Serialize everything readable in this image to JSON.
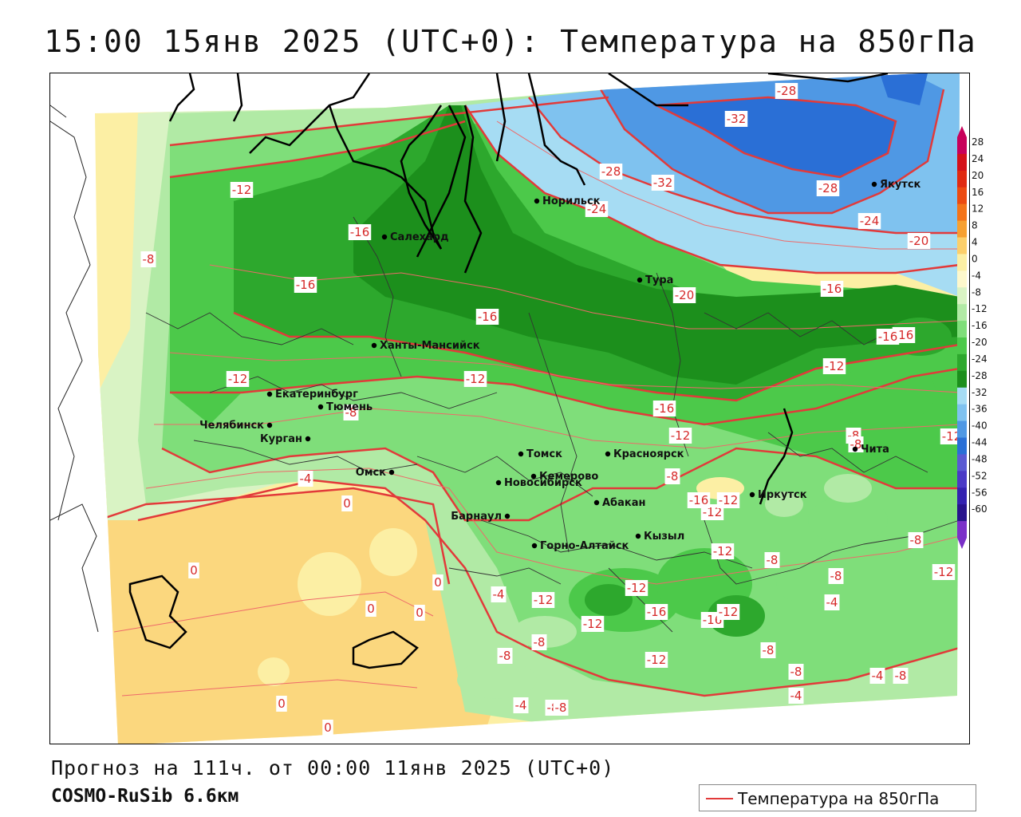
{
  "title": "15:00 15янв 2025 (UTC+0): Температура на 850гПа",
  "footer": {
    "forecast": "Прогноз на 111ч. от 00:00 11янв 2025 (UTC+0)",
    "model": "COSMO-RuSib 6.6км"
  },
  "legend": {
    "label": "Температура на 850гПа",
    "line_color": "#e23a3a"
  },
  "colorbar": {
    "ticks": [
      "28",
      "24",
      "20",
      "16",
      "12",
      "8",
      "4",
      "0",
      "-4",
      "-8",
      "-12",
      "-16",
      "-20",
      "-24",
      "-28",
      "-32",
      "-36",
      "-40",
      "-44",
      "-48",
      "-52",
      "-56",
      "-60"
    ],
    "colors": [
      "#c8005a",
      "#d4101a",
      "#e02a10",
      "#ec4a10",
      "#f37318",
      "#f7a030",
      "#fccf6a",
      "#fcefa4",
      "#fdf8cc",
      "#d9f3c4",
      "#b1eaa5",
      "#7fde7a",
      "#4cc94a",
      "#2da82d",
      "#1c8f1c",
      "#a6dcf3",
      "#7fc2ef",
      "#4f98e4",
      "#2a6fd6",
      "#5a5ad2",
      "#4a3ac6",
      "#3422b0",
      "#28148c",
      "#7a30c8"
    ]
  },
  "cities": [
    {
      "name": "Салехард"
    },
    {
      "name": "Норильск"
    },
    {
      "name": "Якутск"
    },
    {
      "name": "Тура"
    },
    {
      "name": "Ханты-Мансийск"
    },
    {
      "name": "Екатеринбург"
    },
    {
      "name": "Тюмень"
    },
    {
      "name": "Челябинск"
    },
    {
      "name": "Курган"
    },
    {
      "name": "Омск"
    },
    {
      "name": "Новосибирск"
    },
    {
      "name": "Томск"
    },
    {
      "name": "Красноярск"
    },
    {
      "name": "Кемерово"
    },
    {
      "name": "Барнаул"
    },
    {
      "name": "Абакан"
    },
    {
      "name": "Иркутск"
    },
    {
      "name": "Чита"
    },
    {
      "name": "Кызыл"
    },
    {
      "name": "Горно-Алтайск"
    }
  ],
  "isotherm_labels": [
    "-28",
    "-32",
    "-32",
    "-28",
    "-28",
    "-24",
    "-24",
    "-20",
    "-20",
    "-12",
    "-8",
    "-16",
    "-16",
    "-16",
    "-16",
    "-16",
    "-12",
    "-12",
    "-16",
    "-12",
    "-8",
    "-8",
    "-4",
    "0",
    "0",
    "0",
    "0",
    "0",
    "-4",
    "-8",
    "-12",
    "-8",
    "-8",
    "-12",
    "-16",
    "-12",
    "-12",
    "-16",
    "-12",
    "-12",
    "-8",
    "-12",
    "-8",
    "-4",
    "-8",
    "-12",
    "-8",
    "-8",
    "-4",
    "-8",
    "0",
    "0",
    "-4",
    "-8",
    "-8",
    "-4",
    "-12",
    "-12",
    "-16",
    "-12",
    "-16",
    "-8"
  ]
}
